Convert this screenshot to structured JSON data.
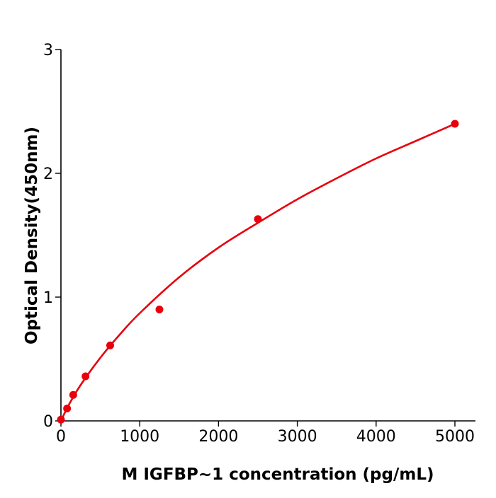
{
  "chart_data": {
    "type": "scatter",
    "title": "",
    "xlabel": "M  IGFBP~1 concentration (pg/mL)",
    "ylabel": "Optical Density(450nm)",
    "xlim": [
      0,
      5260
    ],
    "ylim": [
      0,
      3
    ],
    "xticks": [
      "0",
      "1000",
      "2000",
      "3000",
      "4000",
      "5000"
    ],
    "yticks": [
      "0",
      "1",
      "2",
      "3"
    ],
    "grid": false,
    "color": "#e8000b",
    "points": {
      "x": [
        0,
        78,
        156,
        312,
        625,
        1250,
        2500,
        5000
      ],
      "y": [
        0.01,
        0.1,
        0.21,
        0.36,
        0.61,
        0.9,
        1.63,
        2.4
      ]
    },
    "fit_curve": {
      "x": [
        0,
        100,
        250,
        500,
        750,
        1000,
        1500,
        2000,
        2500,
        3000,
        3500,
        4000,
        4500,
        5000
      ],
      "y": [
        0,
        0.13,
        0.29,
        0.51,
        0.7,
        0.87,
        1.16,
        1.4,
        1.6,
        1.79,
        1.96,
        2.12,
        2.26,
        2.4
      ]
    }
  }
}
